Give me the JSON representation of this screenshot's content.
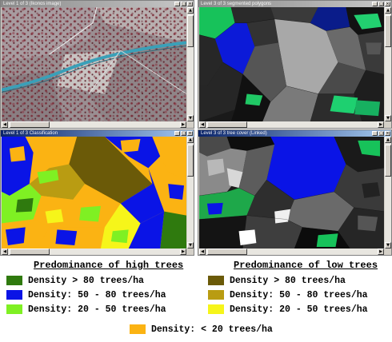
{
  "windows": {
    "top_left": {
      "title": "Level 1 of 3 (Ikonos image)"
    },
    "top_right": {
      "title": "Level 3 of 3 segmented polygons"
    },
    "bottom_left": {
      "title": "Level 1 of 3 Classification"
    },
    "bottom_right": {
      "title": "Level 3 of 3 tree cover (Linked)"
    }
  },
  "window_controls": {
    "minimize": "_",
    "maximize": "□",
    "close": "×"
  },
  "scroll_arrows": {
    "up": "▲",
    "down": "▼",
    "left": "◀",
    "right": "▶"
  },
  "legend": {
    "high_trees": {
      "title": "Predominance of high trees",
      "items": [
        {
          "label": "Density > 80 trees/ha",
          "color": "#2f7a0e"
        },
        {
          "label": "Density: 50 - 80 trees/ha",
          "color": "#0a14e6"
        },
        {
          "label": "Density: 20 - 50 trees/ha",
          "color": "#7ff023"
        }
      ]
    },
    "low_trees": {
      "title": "Predominance of low trees",
      "items": [
        {
          "label": "Density > 80 trees/ha",
          "color": "#6b5a08"
        },
        {
          "label": "Density: 50 - 80 trees/ha",
          "color": "#b99c12"
        },
        {
          "label": "Density: 20 - 50 trees/ha",
          "color": "#f6f51a"
        }
      ]
    },
    "bottom_item": {
      "label": "Density: < 20 trees/ha",
      "color": "#fbb313"
    }
  }
}
